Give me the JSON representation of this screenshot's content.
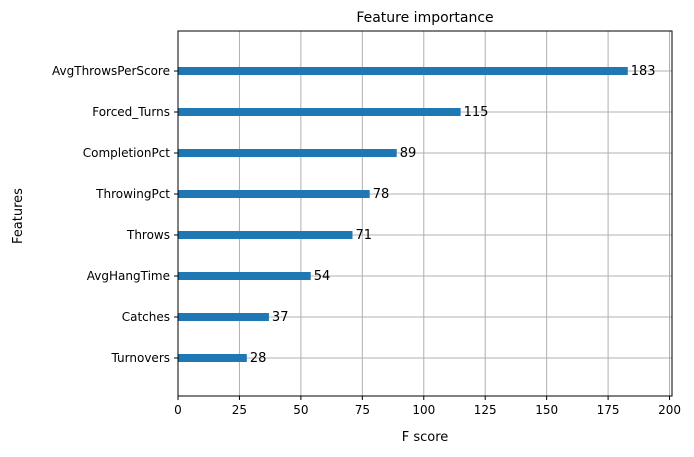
{
  "chart_data": {
    "type": "bar",
    "orientation": "horizontal",
    "title": "Feature importance",
    "xlabel": "F score",
    "ylabel": "Features",
    "xlim": [
      0,
      201
    ],
    "xticks": [
      0,
      25,
      50,
      75,
      100,
      125,
      150,
      175,
      200
    ],
    "grid": true,
    "bar_color": "#1f77b4",
    "categories": [
      "Turnovers",
      "Catches",
      "AvgHangTime",
      "Throws",
      "ThrowingPct",
      "CompletionPct",
      "Forced_Turns",
      "AvgThrowsPerScore"
    ],
    "values": [
      28,
      37,
      54,
      71,
      78,
      89,
      115,
      183
    ]
  }
}
